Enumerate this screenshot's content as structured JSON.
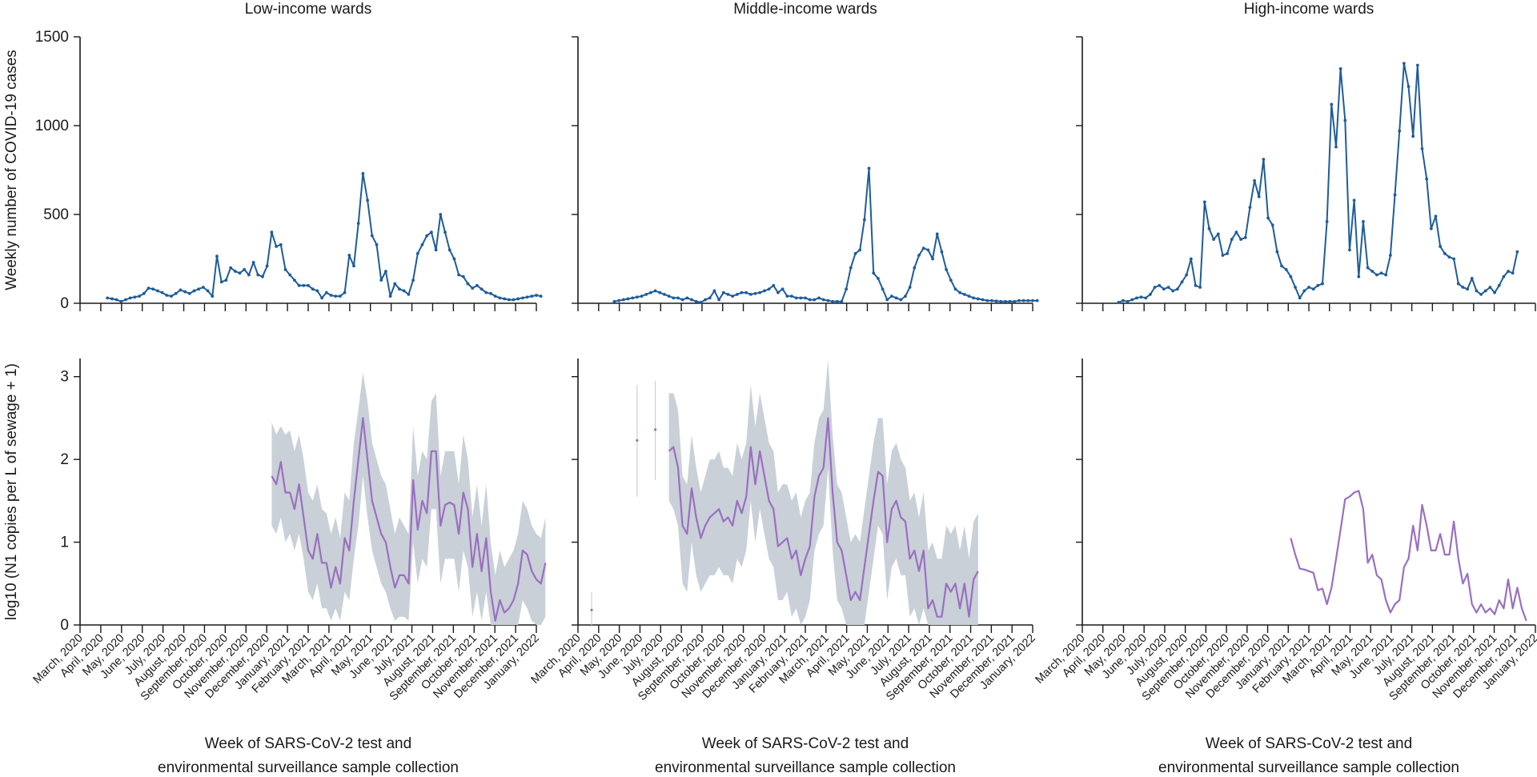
{
  "colors": {
    "cases_line": "#1f5c99",
    "sewage_line": "#9a6fc0",
    "sewage_band": "#c9d0d8",
    "axis": "#1a1a1a",
    "text": "#1a1a1a"
  },
  "chart_data": [
    {
      "type": "line",
      "panel": "top",
      "title": "Low-income wards",
      "ylabel": "Weekly number of COVID-19 cases",
      "ylim": [
        0,
        1500
      ],
      "yticks": [
        0,
        500,
        1000,
        1500
      ],
      "values": [
        null,
        null,
        null,
        null,
        null,
        null,
        30,
        25,
        20,
        10,
        20,
        30,
        35,
        40,
        55,
        85,
        80,
        70,
        60,
        45,
        40,
        55,
        75,
        65,
        55,
        70,
        80,
        90,
        70,
        40,
        265,
        120,
        130,
        200,
        180,
        170,
        190,
        160,
        230,
        160,
        150,
        210,
        400,
        320,
        330,
        190,
        160,
        130,
        100,
        100,
        100,
        80,
        70,
        30,
        60,
        45,
        40,
        40,
        60,
        270,
        210,
        450,
        730,
        580,
        380,
        330,
        130,
        180,
        40,
        110,
        80,
        70,
        50,
        130,
        280,
        330,
        380,
        400,
        300,
        500,
        400,
        300,
        250,
        160,
        150,
        110,
        85,
        100,
        80,
        60,
        55,
        40,
        30,
        25,
        20,
        20,
        25,
        30,
        35,
        40,
        45,
        40
      ]
    },
    {
      "type": "line",
      "panel": "top",
      "title": "Middle-income wards",
      "ylabel": "",
      "ylim": [
        0,
        1500
      ],
      "yticks": [
        0,
        500,
        1000,
        1500
      ],
      "values": [
        null,
        null,
        null,
        null,
        null,
        null,
        null,
        null,
        10,
        15,
        20,
        25,
        30,
        35,
        40,
        50,
        60,
        70,
        60,
        50,
        40,
        30,
        30,
        20,
        30,
        20,
        10,
        5,
        20,
        30,
        70,
        20,
        60,
        50,
        40,
        50,
        60,
        60,
        50,
        55,
        60,
        70,
        80,
        100,
        60,
        80,
        40,
        40,
        30,
        30,
        30,
        20,
        20,
        30,
        20,
        15,
        10,
        10,
        10,
        80,
        200,
        280,
        300,
        470,
        760,
        170,
        140,
        80,
        20,
        40,
        30,
        20,
        40,
        90,
        200,
        270,
        310,
        300,
        250,
        390,
        290,
        190,
        130,
        80,
        60,
        50,
        40,
        30,
        25,
        20,
        15,
        15,
        12,
        10,
        10,
        10,
        10,
        15,
        15,
        15,
        15,
        15
      ]
    },
    {
      "type": "line",
      "panel": "top",
      "title": "High-income wards",
      "ylabel": "",
      "ylim": [
        0,
        1500
      ],
      "yticks": [
        0,
        500,
        1000,
        1500
      ],
      "values": [
        null,
        null,
        null,
        null,
        null,
        null,
        null,
        null,
        5,
        15,
        10,
        20,
        30,
        35,
        30,
        50,
        90,
        100,
        80,
        90,
        70,
        80,
        120,
        160,
        250,
        100,
        90,
        570,
        420,
        360,
        390,
        270,
        280,
        360,
        400,
        360,
        370,
        540,
        690,
        600,
        810,
        480,
        440,
        290,
        210,
        190,
        150,
        90,
        30,
        70,
        90,
        80,
        100,
        110,
        460,
        1120,
        880,
        1320,
        1030,
        300,
        580,
        150,
        460,
        200,
        180,
        160,
        170,
        160,
        270,
        610,
        970,
        1350,
        1220,
        940,
        1340,
        870,
        700,
        420,
        490,
        320,
        280,
        260,
        250,
        110,
        90,
        80,
        140,
        70,
        50,
        70,
        90,
        60,
        100,
        150,
        180,
        170,
        290
      ]
    },
    {
      "type": "line",
      "panel": "bottom",
      "title": "",
      "ylabel": "log10 (N1 copies per L of sewage + 1)",
      "ylim": [
        0,
        3.2
      ],
      "yticks": [
        0,
        1,
        2,
        3
      ],
      "xlabel": "Week of SARS-CoV-2 test and environmental surveillance sample collection",
      "values": [
        null,
        null,
        null,
        null,
        null,
        null,
        null,
        null,
        null,
        null,
        null,
        null,
        null,
        null,
        null,
        null,
        null,
        null,
        null,
        null,
        null,
        null,
        null,
        null,
        null,
        null,
        null,
        null,
        null,
        null,
        null,
        null,
        null,
        null,
        null,
        null,
        null,
        null,
        null,
        null,
        null,
        null,
        1.8,
        1.7,
        1.97,
        1.6,
        1.6,
        1.4,
        1.7,
        1.3,
        0.9,
        0.8,
        1.1,
        0.75,
        0.75,
        0.45,
        0.7,
        0.5,
        1.05,
        0.9,
        1.5,
        2.0,
        2.5,
        2.0,
        1.5,
        1.3,
        1.1,
        1.0,
        0.7,
        0.45,
        0.6,
        0.6,
        0.5,
        1.75,
        1.15,
        1.5,
        1.35,
        2.1,
        2.1,
        1.2,
        1.45,
        1.48,
        1.45,
        1.1,
        1.6,
        1.4,
        0.7,
        1.1,
        0.65,
        1.05,
        0.4,
        0.05,
        0.3,
        0.15,
        0.2,
        0.3,
        0.5,
        0.9,
        0.85,
        0.65,
        0.55,
        0.5,
        0.75
      ],
      "band": [
        null,
        null,
        null,
        null,
        null,
        null,
        null,
        null,
        null,
        null,
        null,
        null,
        null,
        null,
        null,
        null,
        null,
        null,
        null,
        null,
        null,
        null,
        null,
        null,
        null,
        null,
        null,
        null,
        null,
        null,
        null,
        null,
        null,
        null,
        null,
        null,
        null,
        null,
        null,
        null,
        null,
        null,
        [
          1.2,
          2.45
        ],
        [
          1.1,
          2.3
        ],
        [
          1.3,
          2.4
        ],
        [
          1.0,
          2.3
        ],
        [
          1.1,
          2.35
        ],
        [
          0.9,
          2.1
        ],
        [
          1.1,
          2.3
        ],
        [
          0.8,
          2.0
        ],
        [
          0.4,
          1.6
        ],
        [
          0.3,
          1.5
        ],
        [
          0.5,
          1.7
        ],
        [
          0.2,
          1.4
        ],
        [
          0.2,
          1.35
        ],
        [
          0.05,
          1.1
        ],
        [
          0.2,
          1.3
        ],
        [
          0.05,
          1.05
        ],
        [
          0.4,
          1.6
        ],
        [
          0.3,
          1.5
        ],
        [
          0.8,
          2.2
        ],
        [
          1.2,
          2.6
        ],
        [
          1.8,
          3.05
        ],
        [
          1.3,
          2.7
        ],
        [
          0.9,
          2.2
        ],
        [
          0.7,
          2.0
        ],
        [
          0.5,
          1.8
        ],
        [
          0.4,
          1.7
        ],
        [
          0.2,
          1.4
        ],
        [
          0.05,
          1.1
        ],
        [
          0.1,
          1.3
        ],
        [
          0.1,
          1.2
        ],
        [
          0.05,
          1.1
        ],
        [
          1.0,
          2.4
        ],
        [
          0.5,
          1.8
        ],
        [
          0.8,
          2.1
        ],
        [
          0.7,
          2.0
        ],
        [
          1.4,
          2.7
        ],
        [
          1.4,
          2.8
        ],
        [
          0.5,
          1.8
        ],
        [
          0.8,
          2.1
        ],
        [
          0.8,
          2.1
        ],
        [
          0.8,
          2.1
        ],
        [
          0.4,
          1.7
        ],
        [
          0.9,
          2.3
        ],
        [
          0.7,
          2.0
        ],
        [
          0.1,
          1.3
        ],
        [
          0.4,
          1.7
        ],
        [
          0.05,
          1.2
        ],
        [
          0.4,
          1.7
        ],
        [
          0.0,
          1.0
        ],
        [
          0.0,
          0.6
        ],
        [
          0.0,
          0.9
        ],
        [
          0.0,
          0.7
        ],
        [
          0.0,
          0.8
        ],
        [
          0.0,
          0.9
        ],
        [
          0.0,
          1.1
        ],
        [
          0.3,
          1.5
        ],
        [
          0.2,
          1.4
        ],
        [
          0.05,
          1.2
        ],
        [
          0.0,
          1.1
        ],
        [
          0.0,
          1.05
        ],
        [
          0.1,
          1.3
        ]
      ]
    },
    {
      "type": "line",
      "panel": "bottom",
      "title": "",
      "ylabel": "",
      "ylim": [
        0,
        3.2
      ],
      "yticks": [
        0,
        1,
        2,
        3
      ],
      "xlabel": "Week of SARS-CoV-2 test and environmental surveillance sample collection",
      "points": [
        {
          "week": 3,
          "value": 0.18,
          "lo": 0.0,
          "hi": 0.4
        },
        {
          "week": 13,
          "value": 2.23,
          "lo": 1.55,
          "hi": 2.9
        },
        {
          "week": 17,
          "value": 2.36,
          "lo": 1.75,
          "hi": 2.95
        }
      ],
      "values": [
        null,
        null,
        null,
        null,
        null,
        null,
        null,
        null,
        null,
        null,
        null,
        null,
        null,
        null,
        null,
        null,
        null,
        null,
        null,
        null,
        2.1,
        2.15,
        1.9,
        1.2,
        1.1,
        1.65,
        1.3,
        1.05,
        1.2,
        1.3,
        1.35,
        1.4,
        1.25,
        1.3,
        1.2,
        1.5,
        1.35,
        1.55,
        2.15,
        1.7,
        2.1,
        1.8,
        1.5,
        1.4,
        0.95,
        1.0,
        1.05,
        0.8,
        0.9,
        0.6,
        0.8,
        0.95,
        1.55,
        1.8,
        1.9,
        2.5,
        1.6,
        1.0,
        0.9,
        0.6,
        0.3,
        0.4,
        0.3,
        0.7,
        1.1,
        1.5,
        1.85,
        1.8,
        1.0,
        1.4,
        1.5,
        1.3,
        1.25,
        0.8,
        0.9,
        0.65,
        0.9,
        0.2,
        0.3,
        0.1,
        0.1,
        0.5,
        0.4,
        0.5,
        0.2,
        0.5,
        0.1,
        0.55,
        0.65
      ],
      "band": [
        null,
        null,
        null,
        null,
        null,
        null,
        null,
        null,
        null,
        null,
        null,
        null,
        null,
        null,
        null,
        null,
        null,
        null,
        null,
        null,
        [
          1.5,
          2.8
        ],
        [
          1.4,
          2.8
        ],
        [
          1.2,
          2.6
        ],
        [
          0.5,
          1.8
        ],
        [
          0.4,
          1.7
        ],
        [
          1.0,
          2.3
        ],
        [
          0.6,
          1.9
        ],
        [
          0.4,
          1.6
        ],
        [
          0.5,
          1.8
        ],
        [
          0.6,
          2.0
        ],
        [
          0.6,
          2.0
        ],
        [
          0.7,
          2.1
        ],
        [
          0.6,
          1.9
        ],
        [
          0.6,
          1.9
        ],
        [
          0.5,
          1.8
        ],
        [
          0.8,
          2.2
        ],
        [
          0.7,
          2.0
        ],
        [
          0.9,
          2.2
        ],
        [
          1.5,
          2.9
        ],
        [
          1.0,
          2.4
        ],
        [
          1.4,
          2.8
        ],
        [
          1.1,
          2.5
        ],
        [
          0.8,
          2.2
        ],
        [
          0.7,
          2.1
        ],
        [
          0.3,
          1.6
        ],
        [
          0.3,
          1.7
        ],
        [
          0.4,
          1.7
        ],
        [
          0.1,
          1.5
        ],
        [
          0.2,
          1.6
        ],
        [
          0.0,
          1.3
        ],
        [
          0.1,
          1.5
        ],
        [
          0.3,
          1.6
        ],
        [
          0.9,
          2.2
        ],
        [
          1.1,
          2.5
        ],
        [
          1.2,
          2.6
        ],
        [
          1.9,
          3.2
        ],
        [
          0.9,
          2.3
        ],
        [
          0.3,
          1.7
        ],
        [
          0.2,
          1.6
        ],
        [
          0.0,
          1.3
        ],
        [
          0.0,
          1.0
        ],
        [
          0.0,
          1.1
        ],
        [
          0.0,
          1.0
        ],
        [
          0.0,
          1.4
        ],
        [
          0.4,
          1.8
        ],
        [
          0.8,
          2.2
        ],
        [
          1.2,
          2.5
        ],
        [
          1.1,
          2.5
        ],
        [
          0.3,
          1.7
        ],
        [
          0.7,
          2.1
        ],
        [
          0.8,
          2.2
        ],
        [
          0.6,
          2.0
        ],
        [
          0.6,
          1.9
        ],
        [
          0.1,
          1.5
        ],
        [
          0.2,
          1.6
        ],
        [
          0.0,
          1.3
        ],
        [
          0.2,
          1.6
        ],
        [
          0.0,
          0.9
        ],
        [
          0.0,
          1.0
        ],
        [
          0.0,
          0.8
        ],
        [
          0.0,
          0.8
        ],
        [
          0.0,
          1.2
        ],
        [
          0.0,
          1.1
        ],
        [
          0.0,
          1.2
        ],
        [
          0.0,
          0.9
        ],
        [
          0.0,
          1.2
        ],
        [
          0.0,
          0.8
        ],
        [
          0.0,
          1.25
        ],
        [
          0.0,
          1.35
        ]
      ]
    },
    {
      "type": "line",
      "panel": "bottom",
      "title": "",
      "ylabel": "",
      "ylim": [
        0,
        3.2
      ],
      "yticks": [
        0,
        1,
        2,
        3
      ],
      "xlabel": "Week of SARS-CoV-2 test and environmental surveillance sample collection",
      "values": [
        null,
        null,
        null,
        null,
        null,
        null,
        null,
        null,
        null,
        null,
        null,
        null,
        null,
        null,
        null,
        null,
        null,
        null,
        null,
        null,
        null,
        null,
        null,
        null,
        null,
        null,
        null,
        null,
        null,
        null,
        null,
        null,
        null,
        null,
        null,
        null,
        null,
        null,
        null,
        null,
        null,
        null,
        null,
        null,
        null,
        null,
        1.05,
        0.85,
        0.68,
        0.67,
        0.65,
        0.63,
        0.42,
        0.44,
        0.25,
        0.45,
        0.8,
        1.15,
        1.52,
        1.55,
        1.6,
        1.62,
        1.4,
        0.75,
        0.85,
        0.6,
        0.55,
        0.3,
        0.15,
        0.25,
        0.3,
        0.7,
        0.8,
        1.2,
        0.9,
        1.45,
        1.2,
        0.9,
        0.9,
        1.1,
        0.85,
        0.85,
        1.25,
        0.8,
        0.5,
        0.62,
        0.25,
        0.15,
        0.25,
        0.15,
        0.2,
        0.13,
        0.3,
        0.2,
        0.55,
        0.2,
        0.45,
        0.2,
        0.05
      ]
    }
  ],
  "x_ticks": {
    "labels": [
      "March, 2020",
      "April, 2020",
      "May, 2020",
      "June, 2020",
      "July, 2020",
      "August, 2020",
      "September, 2020",
      "October, 2020",
      "November, 2020",
      "December, 2020",
      "January, 2021",
      "February, 2021",
      "March, 2021",
      "April, 2021",
      "May, 2021",
      "June, 2021",
      "July, 2021",
      "August, 2021",
      "September, 2021",
      "October, 2021",
      "November, 2021",
      "December, 2021",
      "January, 2022"
    ]
  },
  "xlabel_lines": [
    "Week of SARS-CoV-2 test and",
    "environmental surveillance sample collection"
  ]
}
